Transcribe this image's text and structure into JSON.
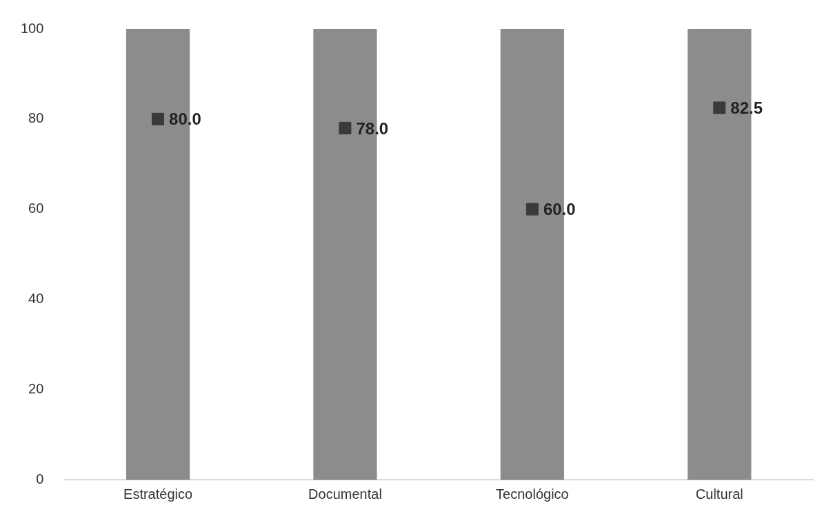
{
  "chart_data": {
    "type": "bar",
    "categories": [
      "Estratégico",
      "Documental",
      "Tecnológico",
      "Cultural"
    ],
    "series": [
      {
        "color": "#8c8c8c",
        "values": [
          100,
          100,
          100,
          100
        ]
      },
      {
        "type": "scatter",
        "color": "#3a3a3a",
        "marker": "square",
        "x": [
          "Estratégico",
          "Documental",
          "Tecnológico",
          "Cultural"
        ],
        "values": [
          80,
          78,
          60,
          82.5
        ],
        "value_labels": [
          "80.0",
          "78.0",
          "60.0",
          "82.5"
        ]
      }
    ],
    "ylim": [
      0,
      100
    ],
    "yticks": [
      0,
      20,
      40,
      60,
      80,
      100
    ],
    "grid": false,
    "legend": false
  }
}
